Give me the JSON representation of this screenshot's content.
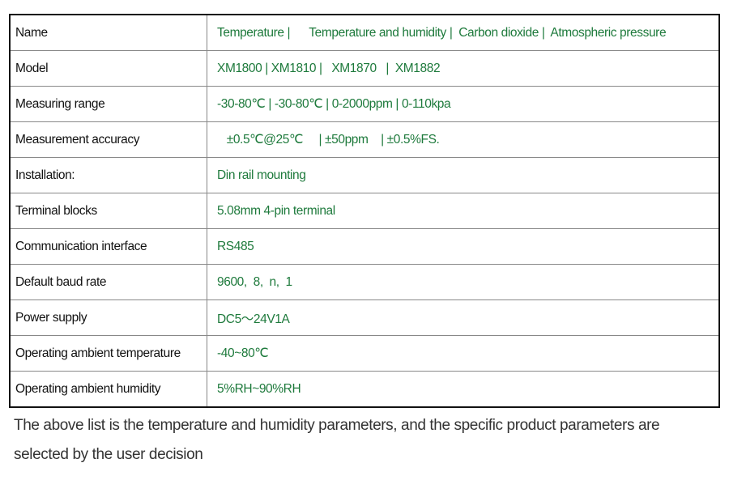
{
  "table": {
    "rows": [
      [
        "Name",
        "Temperature |      Temperature and humidity |  Carbon dioxide |  Atmospheric pressure"
      ],
      [
        "Model",
        "XM1800 | XM1810 |   XM1870   |  XM1882"
      ],
      [
        "Measuring range",
        "-30-80℃ | -30-80℃ | 0-2000ppm | 0-110kpa"
      ],
      [
        "Measurement accuracy",
        "   ±0.5℃@25℃     | ±50ppm    | ±0.5%FS."
      ],
      [
        "Installation:",
        "Din rail mounting"
      ],
      [
        "Terminal blocks",
        "5.08mm 4-pin terminal"
      ],
      [
        "Communication interface",
        "RS485"
      ],
      [
        "Default baud rate",
        "9600,  8,  n,  1"
      ],
      [
        "Power supply",
        "DC5～24V1A"
      ],
      [
        "Operating ambient temperature",
        "-40~80℃"
      ],
      [
        "Operating ambient humidity",
        "5%RH~90%RH"
      ]
    ]
  },
  "note": "The above list is the temperature and humidity parameters, and the specific product parameters are selected by the user decision"
}
